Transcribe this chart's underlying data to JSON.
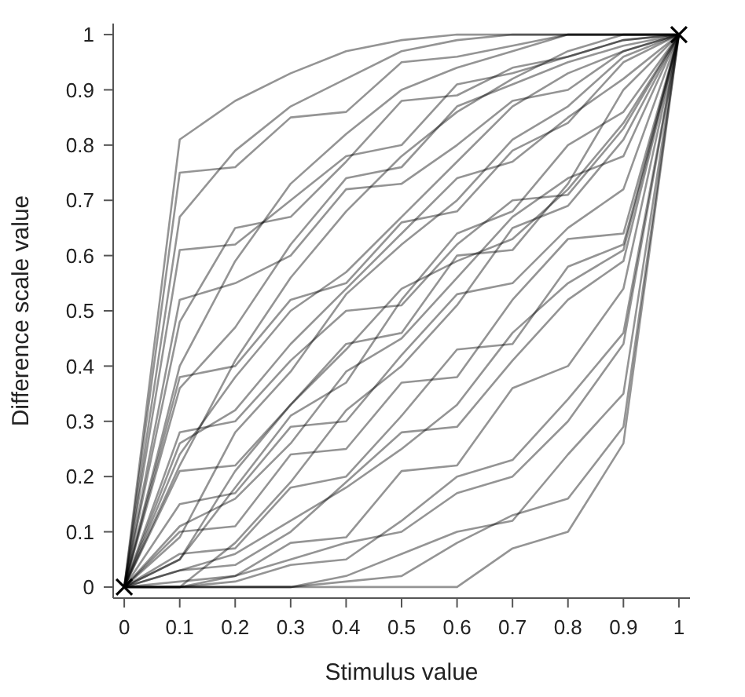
{
  "chart_data": {
    "type": "line",
    "xlabel": "Stimulus value",
    "ylabel": "Difference scale value",
    "x": [
      0,
      0.1,
      0.2,
      0.3,
      0.4,
      0.5,
      0.6,
      0.7,
      0.8,
      0.9,
      1
    ],
    "xlim": [
      -0.02,
      1.02
    ],
    "ylim": [
      -0.02,
      1.02
    ],
    "xticks": [
      0,
      0.1,
      0.2,
      0.3,
      0.4,
      0.5,
      0.6,
      0.7,
      0.8,
      0.9,
      1
    ],
    "yticks": [
      0,
      0.1,
      0.2,
      0.3,
      0.4,
      0.5,
      0.6,
      0.7,
      0.8,
      0.9,
      1
    ],
    "marker": "none",
    "line_style": "solid",
    "series": [
      {
        "color": "#000000",
        "values": [
          0,
          0.81,
          0.88,
          0.93,
          0.97,
          0.99,
          1,
          1,
          1,
          1,
          1
        ]
      },
      {
        "color": "#000000",
        "values": [
          0,
          0.75,
          0.76,
          0.85,
          0.86,
          0.95,
          0.96,
          0.98,
          1,
          1,
          1
        ]
      },
      {
        "color": "#000000",
        "values": [
          0,
          0.61,
          0.62,
          0.7,
          0.78,
          0.8,
          0.91,
          0.93,
          0.96,
          0.99,
          1
        ]
      },
      {
        "color": "#000000",
        "values": [
          0,
          0.52,
          0.55,
          0.6,
          0.72,
          0.73,
          0.8,
          0.88,
          0.9,
          0.97,
          1
        ]
      },
      {
        "color": "#000000",
        "values": [
          0,
          0.38,
          0.4,
          0.52,
          0.55,
          0.66,
          0.68,
          0.79,
          0.84,
          0.95,
          1
        ]
      },
      {
        "color": "#000000",
        "values": [
          0,
          0.28,
          0.3,
          0.41,
          0.5,
          0.51,
          0.62,
          0.7,
          0.71,
          0.83,
          1
        ]
      },
      {
        "color": "#000000",
        "values": [
          0,
          0.21,
          0.22,
          0.33,
          0.44,
          0.46,
          0.6,
          0.61,
          0.73,
          0.9,
          1
        ]
      },
      {
        "color": "#000000",
        "values": [
          0,
          0.15,
          0.17,
          0.29,
          0.3,
          0.42,
          0.53,
          0.55,
          0.65,
          0.72,
          1
        ]
      },
      {
        "color": "#000000",
        "values": [
          0,
          0.1,
          0.11,
          0.24,
          0.25,
          0.37,
          0.38,
          0.52,
          0.63,
          0.64,
          1
        ]
      },
      {
        "color": "#000000",
        "values": [
          0,
          0.06,
          0.07,
          0.18,
          0.2,
          0.31,
          0.43,
          0.44,
          0.58,
          0.62,
          1
        ]
      },
      {
        "color": "#000000",
        "values": [
          0,
          0.03,
          0.04,
          0.1,
          0.19,
          0.28,
          0.29,
          0.41,
          0.52,
          0.59,
          1
        ]
      },
      {
        "color": "#000000",
        "values": [
          0,
          0.01,
          0.02,
          0.08,
          0.09,
          0.21,
          0.22,
          0.36,
          0.4,
          0.54,
          1
        ]
      },
      {
        "color": "#000000",
        "values": [
          0,
          0,
          0.01,
          0.04,
          0.05,
          0.12,
          0.2,
          0.23,
          0.34,
          0.46,
          1
        ]
      },
      {
        "color": "#000000",
        "values": [
          0,
          0,
          0,
          0,
          0.02,
          0.06,
          0.1,
          0.12,
          0.24,
          0.35,
          1
        ]
      },
      {
        "color": "#000000",
        "values": [
          0,
          0,
          0,
          0,
          0,
          0,
          0,
          0.07,
          0.1,
          0.26,
          1
        ]
      },
      {
        "color": "#000000",
        "values": [
          0,
          0,
          0.08,
          0.19,
          0.32,
          0.4,
          0.51,
          0.65,
          0.69,
          0.81,
          1
        ]
      },
      {
        "color": "#000000",
        "values": [
          0,
          0.05,
          0.18,
          0.31,
          0.37,
          0.52,
          0.64,
          0.68,
          0.8,
          0.86,
          1
        ]
      },
      {
        "color": "#000000",
        "values": [
          0,
          0.09,
          0.28,
          0.39,
          0.53,
          0.62,
          0.7,
          0.81,
          0.87,
          0.96,
          1
        ]
      },
      {
        "color": "#000000",
        "values": [
          0,
          0.22,
          0.41,
          0.56,
          0.68,
          0.78,
          0.86,
          0.92,
          0.97,
          1,
          1
        ]
      },
      {
        "color": "#000000",
        "values": [
          0,
          0.4,
          0.59,
          0.73,
          0.82,
          0.9,
          0.94,
          0.97,
          1,
          1,
          1
        ]
      },
      {
        "color": "#000000",
        "values": [
          0,
          0.67,
          0.79,
          0.87,
          0.92,
          0.97,
          0.99,
          1,
          1,
          1,
          1
        ]
      },
      {
        "color": "#000000",
        "values": [
          0,
          0.48,
          0.65,
          0.67,
          0.77,
          0.88,
          0.89,
          0.94,
          0.96,
          0.99,
          1
        ]
      },
      {
        "color": "#000000",
        "values": [
          0,
          0.26,
          0.32,
          0.44,
          0.54,
          0.64,
          0.74,
          0.77,
          0.85,
          0.92,
          1
        ]
      },
      {
        "color": "#000000",
        "values": [
          0,
          0.11,
          0.16,
          0.26,
          0.39,
          0.45,
          0.56,
          0.67,
          0.74,
          0.78,
          1
        ]
      },
      {
        "color": "#000000",
        "values": [
          0,
          0.03,
          0.06,
          0.12,
          0.18,
          0.25,
          0.33,
          0.46,
          0.55,
          0.61,
          1
        ]
      },
      {
        "color": "#000000",
        "values": [
          0,
          0,
          0.02,
          0.05,
          0.08,
          0.1,
          0.17,
          0.2,
          0.3,
          0.44,
          1
        ]
      },
      {
        "color": "#000000",
        "values": [
          0,
          0,
          0,
          0,
          0.01,
          0.02,
          0.08,
          0.13,
          0.16,
          0.29,
          1
        ]
      },
      {
        "color": "#000000",
        "values": [
          0,
          0.24,
          0.38,
          0.5,
          0.57,
          0.67,
          0.77,
          0.87,
          0.93,
          0.97,
          1
        ]
      },
      {
        "color": "#000000",
        "values": [
          0,
          0.05,
          0.21,
          0.33,
          0.43,
          0.54,
          0.59,
          0.63,
          0.72,
          0.84,
          1
        ]
      },
      {
        "color": "#000000",
        "values": [
          0,
          0.36,
          0.47,
          0.62,
          0.74,
          0.76,
          0.87,
          0.91,
          0.95,
          0.98,
          1
        ]
      },
      {
        "type": "scatter",
        "marker": "cross",
        "color": "#000000",
        "x": [
          0,
          1
        ],
        "values": [
          0,
          1
        ]
      }
    ]
  }
}
